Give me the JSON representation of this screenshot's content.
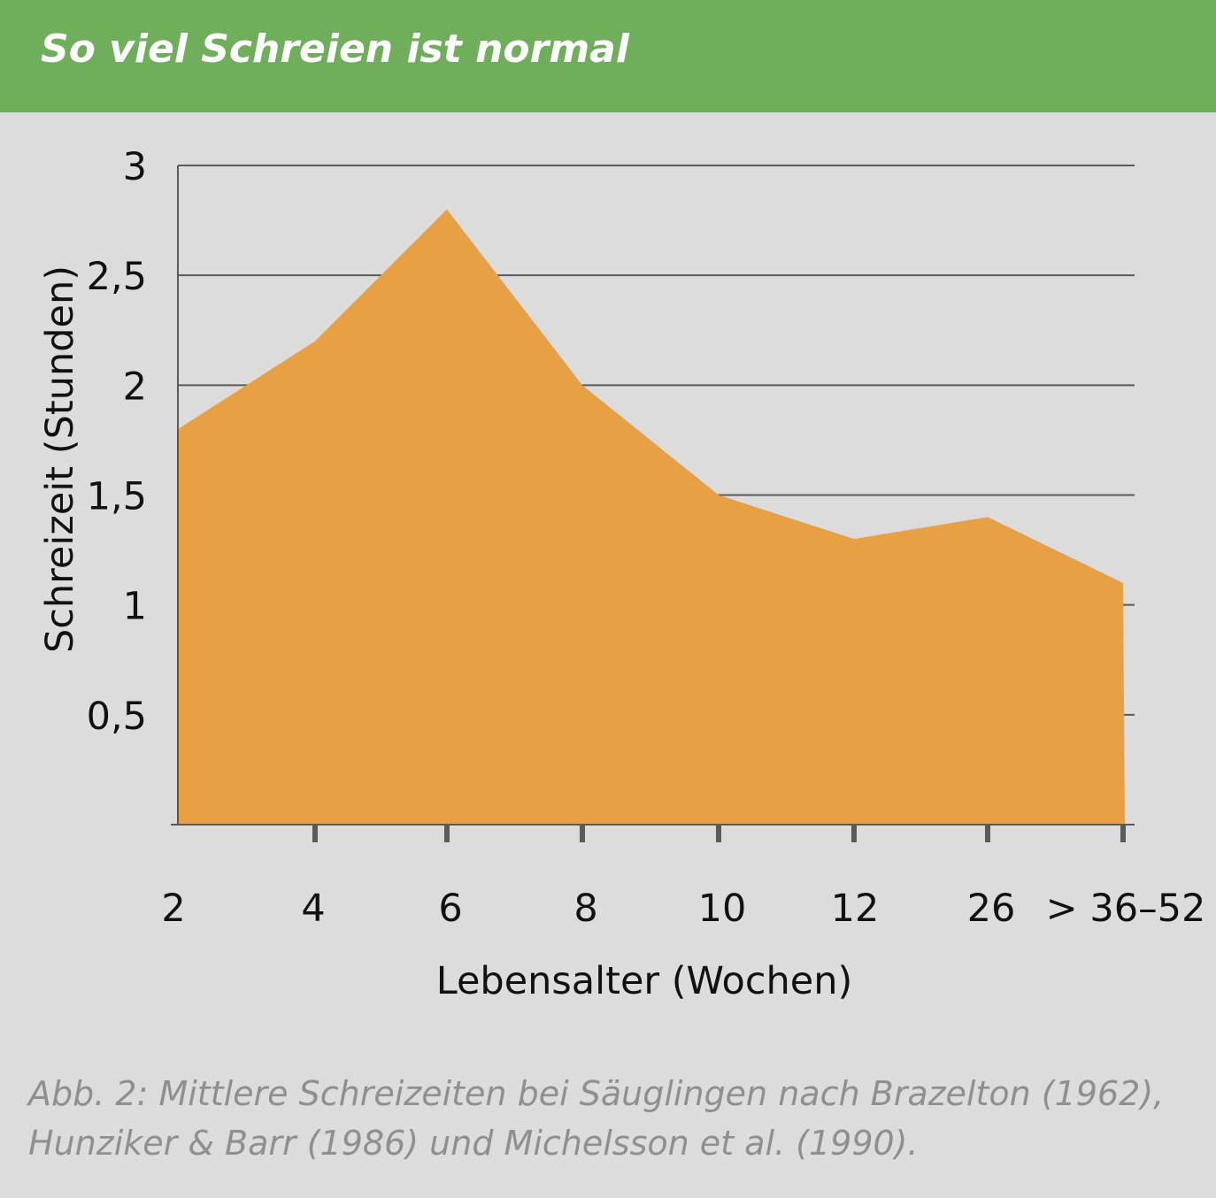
{
  "header": {
    "title": "So viel Schreien ist normal"
  },
  "chart_data": {
    "type": "area",
    "categories": [
      "2",
      "4",
      "6",
      "8",
      "10",
      "12",
      "26",
      "> 36–52"
    ],
    "values": [
      1.8,
      2.2,
      2.8,
      2.0,
      1.5,
      1.3,
      1.4,
      1.1
    ],
    "xlabel": "Lebensalter (Wochen)",
    "ylabel": "Schreizeit (Stunden)",
    "ylim": [
      0,
      3
    ],
    "yticks": [
      0.5,
      1,
      1.5,
      2,
      2.5,
      3
    ],
    "ytick_labels": [
      "0,5",
      "1",
      "1,5",
      "2",
      "2,5",
      "3"
    ],
    "grid": true,
    "fill_color": "#e8a044",
    "grid_color": "#5a5a5a"
  },
  "caption": "Abb. 2: Mittlere Schreizeiten bei Säuglingen nach Brazelton (1962), Hunziker & Barr (1986) und Michelsson et al. (1990)."
}
